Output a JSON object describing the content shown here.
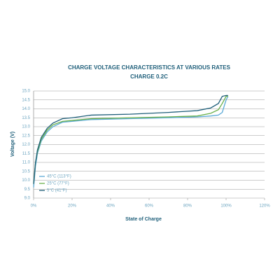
{
  "chart_data": {
    "type": "line",
    "title": "CHARGE VOLTAGE CHARACTERISTICS AT VARIOUS RATES",
    "subtitle": "CHARGE 0.2C",
    "x_label": "State of Charge",
    "y_label": "Voltage (V)",
    "x": [
      0,
      1,
      2,
      4,
      7,
      10,
      15,
      20,
      30,
      50,
      70,
      85,
      92,
      96,
      98,
      100,
      101
    ],
    "series": [
      {
        "name": "45°C (113°F)",
        "color": "#5aa9d6",
        "values": [
          9.6,
          10.8,
          11.5,
          12.2,
          12.7,
          13.0,
          13.25,
          13.3,
          13.4,
          13.45,
          13.5,
          13.55,
          13.6,
          13.65,
          13.8,
          14.5,
          14.7
        ]
      },
      {
        "name": "25°C (77°F)",
        "color": "#6ab04c",
        "values": [
          9.8,
          11,
          11.6,
          12.3,
          12.8,
          13.1,
          13.3,
          13.35,
          13.45,
          13.5,
          13.55,
          13.6,
          13.75,
          13.95,
          14.3,
          14.7,
          14.7
        ]
      },
      {
        "name": "5°C (41°F)",
        "color": "#1f5f7a",
        "values": [
          9.8,
          11,
          11.7,
          12.4,
          12.9,
          13.2,
          13.45,
          13.5,
          13.65,
          13.7,
          13.8,
          13.9,
          14.05,
          14.3,
          14.7,
          14.75,
          14.75
        ]
      }
    ],
    "xlim": [
      0,
      120
    ],
    "xticks": [
      {
        "value": 0,
        "label": "0%"
      },
      {
        "value": 20,
        "label": "20%"
      },
      {
        "value": 40,
        "label": "40%"
      },
      {
        "value": 60,
        "label": "60%"
      },
      {
        "value": 80,
        "label": "80%"
      },
      {
        "value": 100,
        "label": "100%"
      },
      {
        "value": 120,
        "label": "120%"
      }
    ],
    "ylim": [
      9,
      15
    ],
    "yticks": [
      {
        "value": 9,
        "label": "9.0"
      },
      9.5,
      {
        "value": 10,
        "label": "10.0"
      },
      10.5,
      {
        "value": 11,
        "label": "11.0"
      },
      11.5,
      {
        "value": 12,
        "label": "12.0"
      },
      12.5,
      {
        "value": 13,
        "label": "13.0"
      },
      13.5,
      {
        "value": 14,
        "label": "14.0"
      },
      14.5,
      {
        "value": 15,
        "label": "15.0"
      }
    ],
    "grid": true,
    "legend": "lower left"
  }
}
